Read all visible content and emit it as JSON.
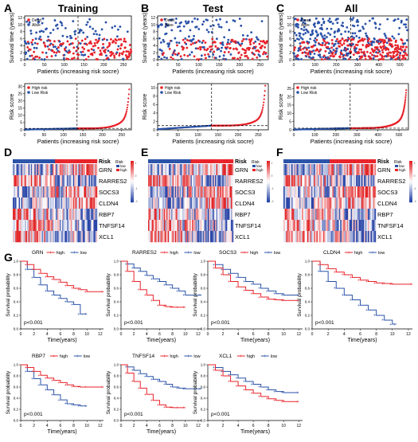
{
  "figure": {
    "panel_letters": [
      "A",
      "B",
      "C",
      "D",
      "E",
      "F",
      "G"
    ]
  },
  "chart_data": [
    {
      "id": "A_status",
      "type": "scatter",
      "title": "Training",
      "xlabel": "Patients (increasing risk socre)",
      "ylabel": "Survival time (years)",
      "xticks": [
        0,
        50,
        100,
        150,
        200,
        250
      ],
      "yticks": [
        0,
        2,
        4,
        6,
        8,
        10,
        12
      ],
      "xlim": [
        0,
        270
      ],
      "ylim": [
        0,
        12.5
      ],
      "n": 270,
      "cutoff": 135,
      "legend": [
        "Dead",
        "Alive"
      ],
      "legend_position": "top-left"
    },
    {
      "id": "B_status",
      "type": "scatter",
      "title": "Test",
      "xlabel": "Patients (increasing risk socre)",
      "ylabel": "Survival time (years)",
      "xticks": [
        0,
        50,
        100,
        150,
        200,
        250
      ],
      "yticks": [
        0,
        2,
        4,
        6,
        8,
        10,
        12
      ],
      "xlim": [
        0,
        270
      ],
      "ylim": [
        0,
        12.5
      ],
      "n": 268,
      "cutoff": 134,
      "legend": [
        "Dead",
        "Alive"
      ],
      "legend_position": "top-left"
    },
    {
      "id": "C_status",
      "type": "scatter",
      "title": "All",
      "xlabel": "Patients (increasing risk socre)",
      "ylabel": "Survival time (years)",
      "xticks": [
        0,
        100,
        200,
        300,
        400,
        500
      ],
      "yticks": [
        0,
        2,
        4,
        6,
        8,
        10,
        12
      ],
      "xlim": [
        0,
        540
      ],
      "ylim": [
        0,
        12.5
      ],
      "n": 535,
      "cutoff": 268,
      "legend": [
        "Dead",
        "Alive"
      ],
      "legend_position": "top-left"
    },
    {
      "id": "A_risk",
      "type": "scatter",
      "xlabel": "Patients (increasing risk socre)",
      "ylabel": "Risk score",
      "xticks": [
        0,
        50,
        100,
        150,
        200,
        250
      ],
      "yticks": [
        0,
        5,
        10,
        15,
        20,
        25,
        30
      ],
      "xlim": [
        0,
        275
      ],
      "ylim": [
        0,
        32
      ],
      "n": 270,
      "cutoff": 135,
      "threshold": 1.0,
      "max_score": 28,
      "legend": [
        "High risk",
        "Low Risk"
      ],
      "legend_position": "top-left"
    },
    {
      "id": "B_risk",
      "type": "scatter",
      "xlabel": "Patients (increasing risk socre)",
      "ylabel": "Risk score",
      "xticks": [
        0,
        50,
        100,
        150,
        200,
        250
      ],
      "yticks": [
        0,
        2,
        4,
        6,
        8,
        10
      ],
      "xlim": [
        0,
        275
      ],
      "ylim": [
        0,
        11
      ],
      "n": 268,
      "cutoff": 134,
      "threshold": 1.0,
      "max_score": 10.5,
      "legend": [
        "High risk",
        "Low Risk"
      ],
      "legend_position": "top-left"
    },
    {
      "id": "C_risk",
      "type": "scatter",
      "xlabel": "Patients (increasing risk socre)",
      "ylabel": "Risk score",
      "xticks": [
        0,
        100,
        200,
        300,
        400,
        500
      ],
      "yticks": [
        0,
        5,
        10,
        15,
        20,
        25
      ],
      "xlim": [
        0,
        545
      ],
      "ylim": [
        0,
        28
      ],
      "n": 535,
      "cutoff": 268,
      "threshold": 1.0,
      "max_score": 24,
      "legend": [
        "High risk",
        "Low Risk"
      ],
      "legend_position": "top-left"
    },
    {
      "id": "D_heatmap",
      "type": "heatmap",
      "genes": [
        "GRN",
        "RARRES2",
        "SOCS3",
        "CLDN4",
        "RBP7",
        "TNFSF14",
        "XCL1"
      ],
      "annotation_title": "Risk",
      "annotation_levels": [
        "low",
        "high"
      ],
      "colorbar_ticks": [
        "1",
        "0",
        "-1",
        "-2"
      ]
    },
    {
      "id": "E_heatmap",
      "type": "heatmap",
      "genes": [
        "GRN",
        "RARRES2",
        "SOCS3",
        "CLDN4",
        "RBP7",
        "TNFSF14",
        "XCL1"
      ],
      "annotation_title": "Risk",
      "annotation_levels": [
        "low",
        "high"
      ],
      "colorbar_ticks": [
        "1",
        "0",
        "-1",
        "-2"
      ]
    },
    {
      "id": "F_heatmap",
      "type": "heatmap",
      "genes": [
        "GRN",
        "RARRES2",
        "SOCS3",
        "CLDN4",
        "RBP7",
        "TNFSF14",
        "XCL1"
      ],
      "annotation_title": "Risk",
      "annotation_levels": [
        "low",
        "high"
      ],
      "colorbar_ticks": [
        "1",
        "0",
        "-1",
        "-2"
      ]
    },
    {
      "id": "G_km",
      "type": "line",
      "xlabel": "Time(years)",
      "ylabel": "Survival probability",
      "xticks": [
        0,
        2,
        4,
        6,
        8,
        10,
        12
      ],
      "yticks": [
        0.0,
        0.2,
        0.4,
        0.6,
        0.8,
        1.0
      ],
      "xlim": [
        0,
        12.5
      ],
      "ylim": [
        0,
        1
      ],
      "series_names": [
        "high",
        "low"
      ],
      "panels": [
        {
          "gene": "GRN",
          "pvalue": "p<0.001",
          "high": [
            [
              0,
              1
            ],
            [
              1,
              0.95
            ],
            [
              2,
              0.88
            ],
            [
              3,
              0.82
            ],
            [
              4,
              0.77
            ],
            [
              5,
              0.73
            ],
            [
              6,
              0.69
            ],
            [
              7,
              0.64
            ],
            [
              8,
              0.6
            ],
            [
              9,
              0.58
            ],
            [
              10,
              0.55
            ],
            [
              12.5,
              0.55
            ]
          ],
          "low": [
            [
              0,
              1
            ],
            [
              1,
              0.88
            ],
            [
              2,
              0.76
            ],
            [
              3,
              0.65
            ],
            [
              4,
              0.56
            ],
            [
              5,
              0.5
            ],
            [
              6,
              0.45
            ],
            [
              7,
              0.4
            ],
            [
              8,
              0.36
            ],
            [
              9,
              0.22
            ],
            [
              10,
              0.22
            ]
          ]
        },
        {
          "gene": "RARRES2",
          "pvalue": "p<0.001",
          "high": [
            [
              0,
              1
            ],
            [
              1,
              0.85
            ],
            [
              2,
              0.7
            ],
            [
              3,
              0.58
            ],
            [
              4,
              0.5
            ],
            [
              5,
              0.42
            ],
            [
              6,
              0.35
            ],
            [
              7,
              0.33
            ],
            [
              8,
              0.32
            ],
            [
              9,
              0.32
            ],
            [
              10,
              0.32
            ]
          ],
          "low": [
            [
              0,
              1
            ],
            [
              1,
              0.96
            ],
            [
              2,
              0.9
            ],
            [
              3,
              0.85
            ],
            [
              4,
              0.79
            ],
            [
              5,
              0.74
            ],
            [
              6,
              0.7
            ],
            [
              7,
              0.65
            ],
            [
              8,
              0.6
            ],
            [
              9,
              0.56
            ],
            [
              10,
              0.5
            ],
            [
              12.5,
              0.5
            ]
          ]
        },
        {
          "gene": "SOCS3",
          "pvalue": "p<0.001",
          "high": [
            [
              0,
              1
            ],
            [
              1,
              0.9
            ],
            [
              2,
              0.8
            ],
            [
              3,
              0.7
            ],
            [
              4,
              0.62
            ],
            [
              5,
              0.57
            ],
            [
              6,
              0.52
            ],
            [
              7,
              0.47
            ],
            [
              8,
              0.44
            ],
            [
              9,
              0.43
            ],
            [
              10,
              0.42
            ],
            [
              12,
              0.42
            ]
          ],
          "low": [
            [
              0,
              1
            ],
            [
              1,
              0.95
            ],
            [
              2,
              0.88
            ],
            [
              3,
              0.82
            ],
            [
              4,
              0.76
            ],
            [
              5,
              0.7
            ],
            [
              6,
              0.66
            ],
            [
              7,
              0.6
            ],
            [
              8,
              0.56
            ],
            [
              9,
              0.52
            ],
            [
              10,
              0.5
            ],
            [
              12,
              0.5
            ]
          ]
        },
        {
          "gene": "CLDN4",
          "pvalue": "p<0.001",
          "high": [
            [
              0,
              1
            ],
            [
              1,
              0.95
            ],
            [
              2,
              0.89
            ],
            [
              3,
              0.84
            ],
            [
              4,
              0.8
            ],
            [
              5,
              0.76
            ],
            [
              6,
              0.72
            ],
            [
              7,
              0.7
            ],
            [
              8,
              0.68
            ],
            [
              9,
              0.67
            ],
            [
              10,
              0.66
            ],
            [
              12.5,
              0.66
            ]
          ],
          "low": [
            [
              0,
              1
            ],
            [
              1,
              0.85
            ],
            [
              2,
              0.7
            ],
            [
              3,
              0.6
            ],
            [
              4,
              0.5
            ],
            [
              5,
              0.43
            ],
            [
              6,
              0.35
            ],
            [
              7,
              0.28
            ],
            [
              8,
              0.2
            ],
            [
              9,
              0.13
            ],
            [
              10,
              0.07
            ],
            [
              10.5,
              0.07
            ]
          ]
        },
        {
          "gene": "RBP7",
          "pvalue": "p<0.001",
          "high": [
            [
              0,
              1
            ],
            [
              1,
              0.95
            ],
            [
              2,
              0.88
            ],
            [
              3,
              0.81
            ],
            [
              4,
              0.76
            ],
            [
              5,
              0.72
            ],
            [
              6,
              0.68
            ],
            [
              7,
              0.64
            ],
            [
              8,
              0.61
            ],
            [
              9,
              0.6
            ],
            [
              10,
              0.6
            ],
            [
              12.5,
              0.6
            ]
          ],
          "low": [
            [
              0,
              1
            ],
            [
              1,
              0.88
            ],
            [
              2,
              0.75
            ],
            [
              3,
              0.64
            ],
            [
              4,
              0.55
            ],
            [
              5,
              0.46
            ],
            [
              6,
              0.37
            ],
            [
              7,
              0.3
            ],
            [
              8,
              0.28
            ],
            [
              9,
              0.26
            ],
            [
              10,
              0.26
            ]
          ]
        },
        {
          "gene": "TNFSF14",
          "pvalue": "p<0.001",
          "high": [
            [
              0,
              1
            ],
            [
              1,
              0.85
            ],
            [
              2,
              0.7
            ],
            [
              3,
              0.58
            ],
            [
              4,
              0.47
            ],
            [
              5,
              0.36
            ],
            [
              6,
              0.28
            ],
            [
              7,
              0.24
            ],
            [
              8,
              0.23
            ],
            [
              9,
              0.23
            ],
            [
              10,
              0.23
            ]
          ],
          "low": [
            [
              0,
              1
            ],
            [
              1,
              0.96
            ],
            [
              2,
              0.9
            ],
            [
              3,
              0.84
            ],
            [
              4,
              0.79
            ],
            [
              5,
              0.74
            ],
            [
              6,
              0.7
            ],
            [
              7,
              0.65
            ],
            [
              8,
              0.6
            ],
            [
              9,
              0.58
            ],
            [
              10,
              0.57
            ],
            [
              12.5,
              0.57
            ]
          ]
        },
        {
          "gene": "XCL1",
          "pvalue": "p<0.001",
          "high": [
            [
              0,
              1
            ],
            [
              1,
              0.9
            ],
            [
              2,
              0.8
            ],
            [
              3,
              0.7
            ],
            [
              4,
              0.62
            ],
            [
              5,
              0.55
            ],
            [
              6,
              0.49
            ],
            [
              7,
              0.43
            ],
            [
              8,
              0.39
            ],
            [
              9,
              0.36
            ],
            [
              10,
              0.34
            ],
            [
              12,
              0.34
            ]
          ],
          "low": [
            [
              0,
              1
            ],
            [
              1,
              0.95
            ],
            [
              2,
              0.88
            ],
            [
              3,
              0.82
            ],
            [
              4,
              0.76
            ],
            [
              5,
              0.7
            ],
            [
              6,
              0.65
            ],
            [
              7,
              0.6
            ],
            [
              8,
              0.55
            ],
            [
              9,
              0.52
            ],
            [
              10,
              0.5
            ],
            [
              12,
              0.5
            ]
          ]
        }
      ]
    }
  ],
  "colors": {
    "high": "#e8222a",
    "low": "#2a52a8",
    "dead": "#e8222a",
    "alive": "#2a52a8"
  }
}
